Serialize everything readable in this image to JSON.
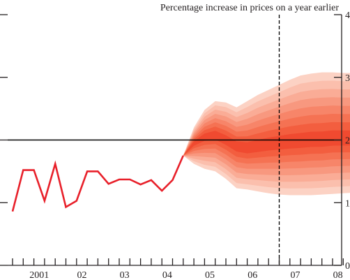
{
  "chart_data": {
    "type": "area",
    "title": "Percentage increase in prices on a year earlier",
    "ylim": [
      0,
      4
    ],
    "y_ticks": [
      0,
      1,
      2,
      3,
      4
    ],
    "target_line": 2,
    "forecast_start_quarter": "2007 Q1",
    "x_tick_labels": [
      {
        "label": "2001",
        "year": 2001
      },
      {
        "label": "02",
        "year": 2002
      },
      {
        "label": "03",
        "year": 2003
      },
      {
        "label": "04",
        "year": 2004
      },
      {
        "label": "05",
        "year": 2005
      },
      {
        "label": "06",
        "year": 2006
      },
      {
        "label": "07",
        "year": 2007
      },
      {
        "label": "08",
        "year": 2008
      }
    ],
    "x_first_quarter": "2000 Q4",
    "x_last_quarter": "2008 Q4",
    "history": {
      "quarters": [
        "2000 Q4",
        "2001 Q1",
        "2001 Q2",
        "2001 Q3",
        "2001 Q4",
        "2002 Q1",
        "2002 Q2",
        "2002 Q3",
        "2002 Q4",
        "2003 Q1",
        "2003 Q2",
        "2003 Q3",
        "2003 Q4",
        "2004 Q1",
        "2004 Q2",
        "2004 Q3",
        "2004 Q4"
      ],
      "values": [
        0.86,
        1.52,
        1.52,
        1.03,
        1.62,
        0.93,
        1.03,
        1.5,
        1.5,
        1.3,
        1.37,
        1.37,
        1.29,
        1.36,
        1.19,
        1.36,
        1.75
      ]
    },
    "fan": {
      "quarters": [
        "2004 Q4",
        "2005 Q1",
        "2005 Q2",
        "2005 Q3",
        "2005 Q4",
        "2006 Q1",
        "2006 Q2",
        "2006 Q3",
        "2006 Q4",
        "2007 Q1",
        "2007 Q2",
        "2007 Q3",
        "2007 Q4",
        "2008 Q1",
        "2008 Q2",
        "2008 Q3",
        "2008 Q4"
      ],
      "central": [
        1.75,
        1.95,
        2.05,
        2.08,
        2.0,
        1.9,
        1.87,
        1.9,
        1.93,
        1.95,
        1.97,
        1.98,
        2.0,
        2.0,
        2.02,
        2.02,
        2.02
      ],
      "outer_upper": [
        1.75,
        2.2,
        2.48,
        2.62,
        2.6,
        2.52,
        2.62,
        2.72,
        2.8,
        2.88,
        2.96,
        3.03,
        3.06,
        3.08,
        3.08,
        3.07,
        3.07
      ],
      "outer_lower": [
        1.75,
        1.62,
        1.54,
        1.5,
        1.38,
        1.23,
        1.21,
        1.18,
        1.15,
        1.13,
        1.12,
        1.12,
        1.12,
        1.13,
        1.14,
        1.15,
        1.16
      ],
      "band_colors": [
        "#fcd2c4",
        "#fbbfad",
        "#faac96",
        "#f8987f",
        "#f78569",
        "#f57253",
        "#f35e3f",
        "#f04a30"
      ]
    },
    "colors": {
      "history_line": "#e8202a",
      "target_line": "#000000",
      "axis": "#231f20"
    }
  }
}
